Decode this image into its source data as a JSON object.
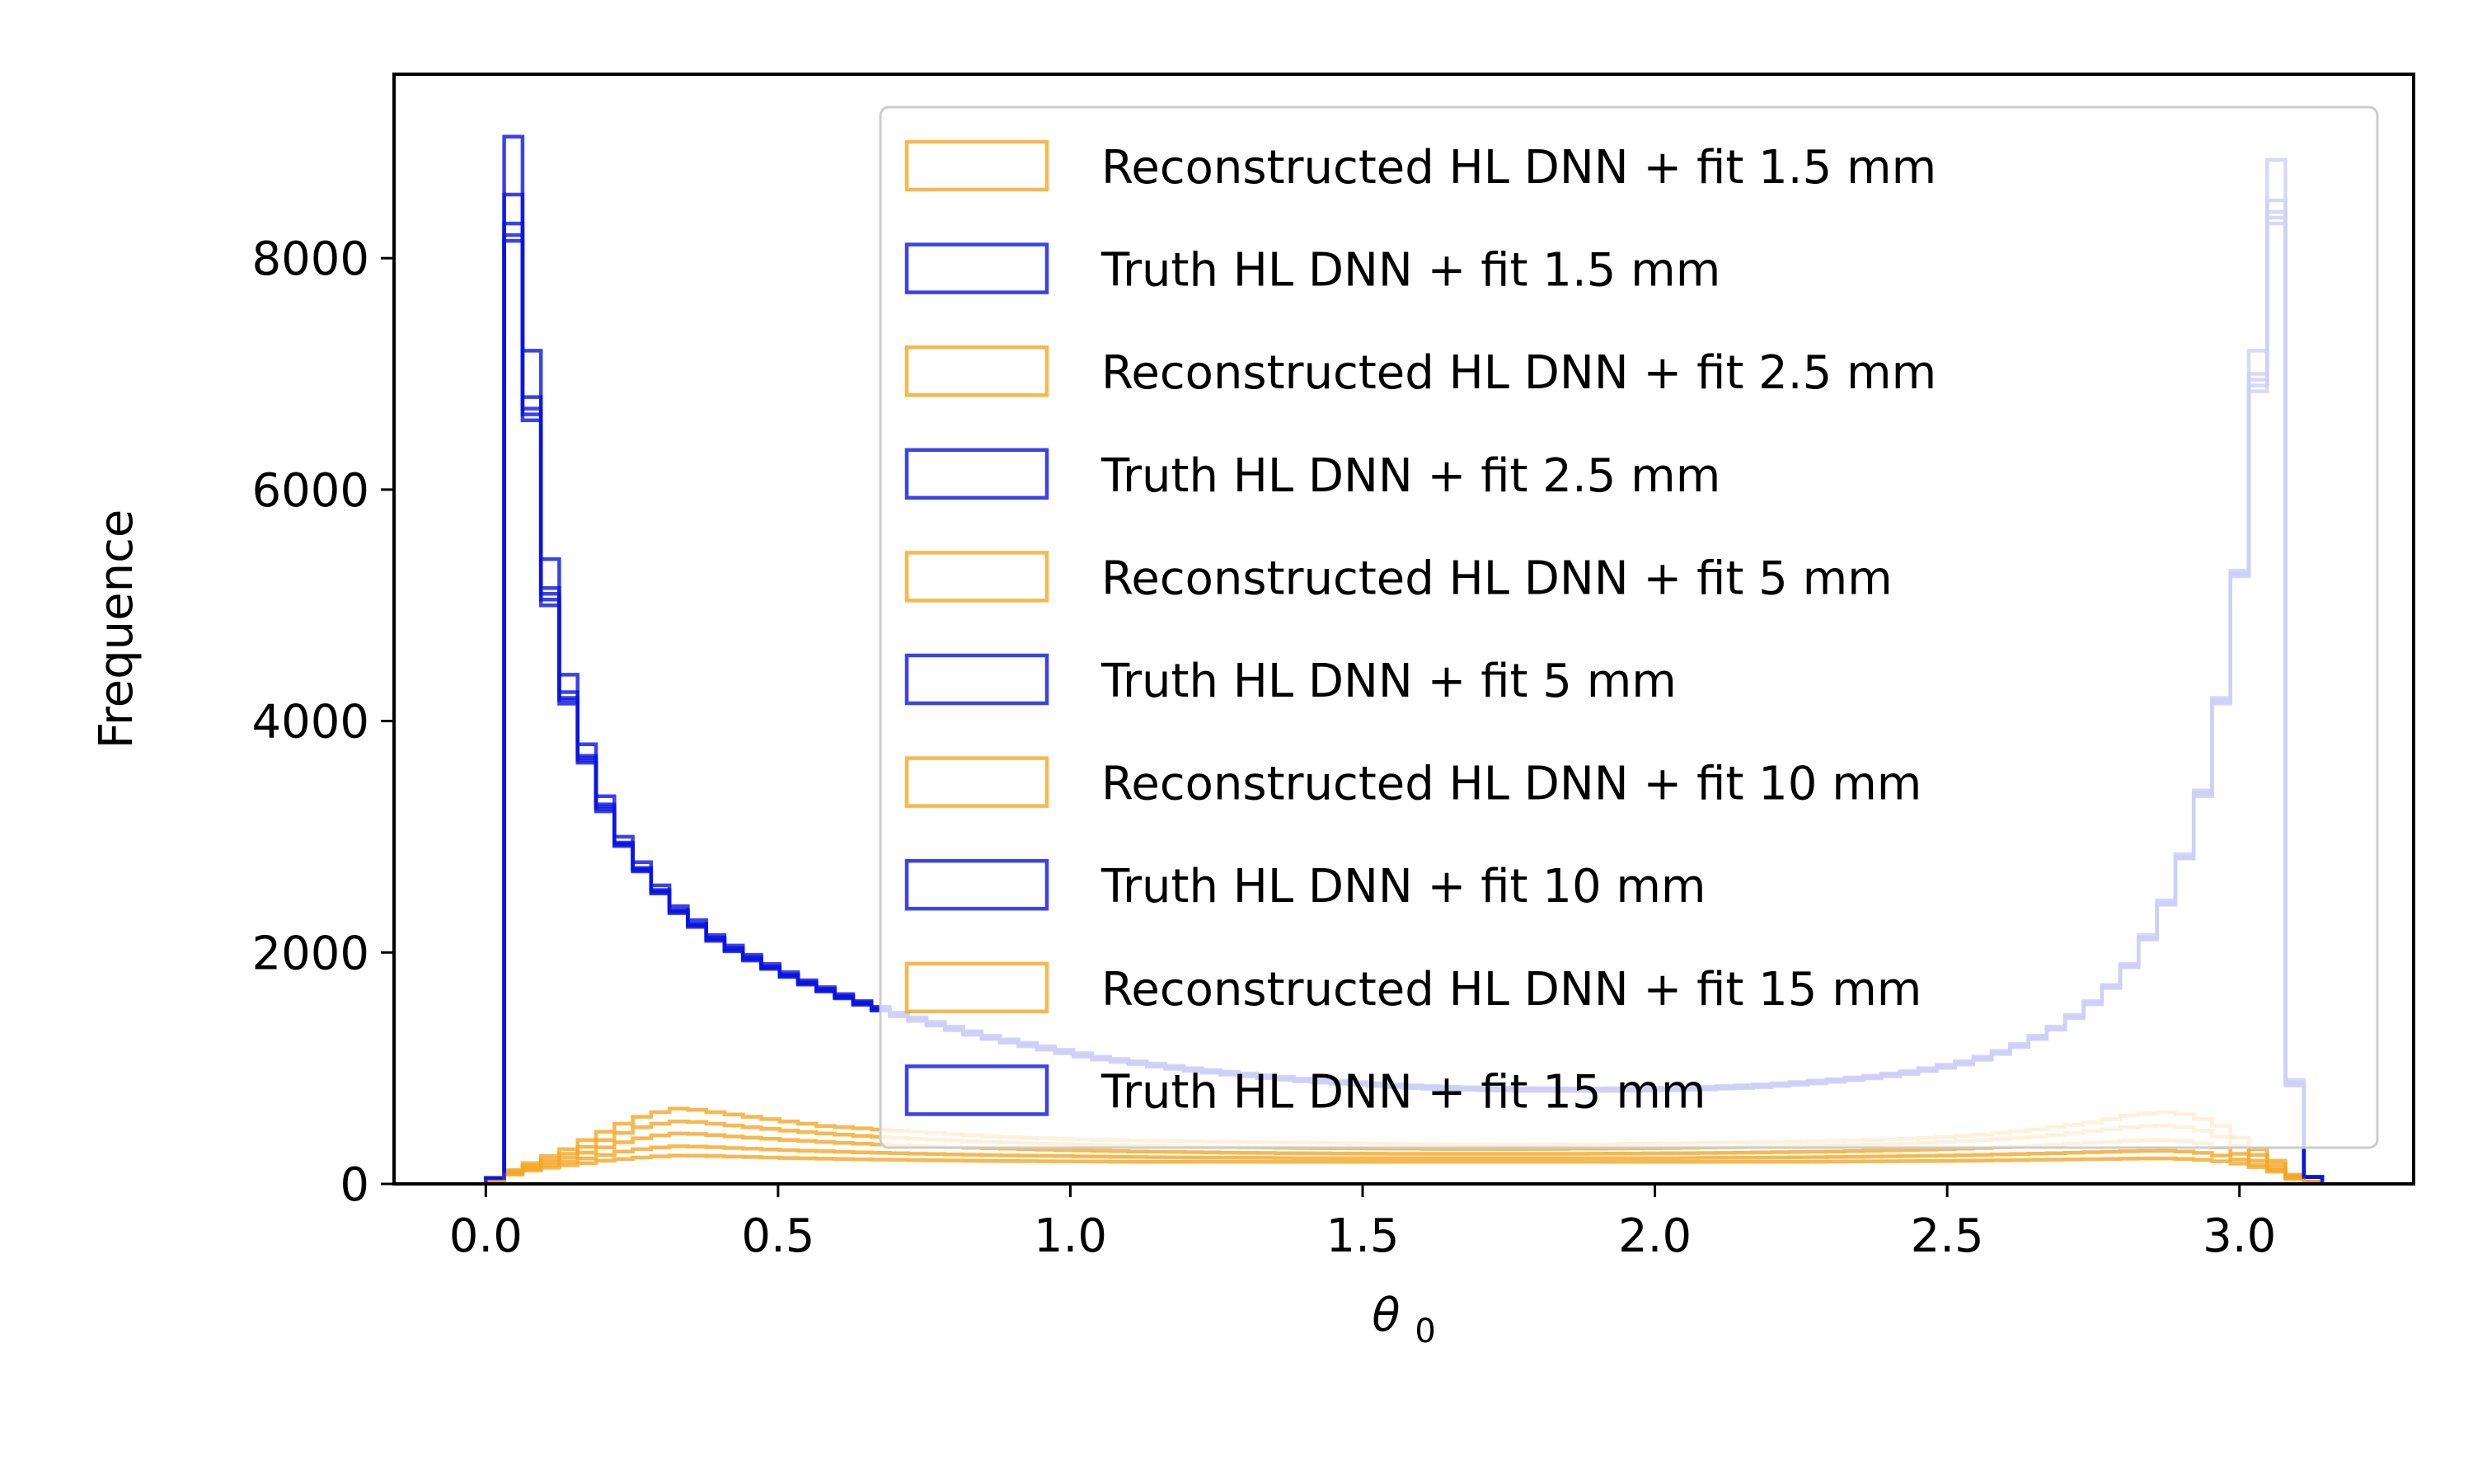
{
  "chart_data": {
    "type": "histogram-step",
    "xlabel": "θ",
    "xlabel_sub": "0",
    "ylabel": "Frequence",
    "xlim": [
      -0.157,
      3.298
    ],
    "ylim": [
      0,
      9590
    ],
    "xticks": [
      0.0,
      0.5,
      1.0,
      1.5,
      2.0,
      2.5,
      3.0
    ],
    "xtick_labels": [
      "0.0",
      "0.5",
      "1.0",
      "1.5",
      "2.0",
      "2.5",
      "3.0"
    ],
    "yticks": [
      0,
      2000,
      4000,
      6000,
      8000
    ],
    "ytick_labels": [
      "0",
      "2000",
      "4000",
      "6000",
      "8000"
    ],
    "grid": false,
    "legend_position": "upper right",
    "bins": {
      "start": 0.0,
      "end": 3.1416,
      "count": 100
    },
    "colors": {
      "reconstructed": "#f5a623",
      "truth": "#0a14e0"
    },
    "series": [
      {
        "name": "Reconstructed HL DNN + fit 1.5 mm",
        "kind": "reconstructed",
        "values": [
          30,
          120,
          180,
          240,
          300,
          380,
          450,
          520,
          580,
          620,
          650,
          640,
          620,
          600,
          580,
          560,
          540,
          520,
          500,
          490,
          480,
          470,
          460,
          450,
          440,
          430,
          420,
          410,
          405,
          400,
          395,
          390,
          385,
          380,
          378,
          375,
          372,
          370,
          368,
          366,
          364,
          362,
          360,
          358,
          356,
          354,
          352,
          350,
          348,
          346,
          345,
          344,
          343,
          342,
          341,
          340,
          340,
          341,
          342,
          343,
          344,
          345,
          346,
          348,
          350,
          352,
          354,
          356,
          358,
          360,
          362,
          365,
          368,
          372,
          376,
          380,
          385,
          390,
          398,
          405,
          415,
          425,
          440,
          455,
          470,
          490,
          510,
          530,
          560,
          590,
          610,
          620,
          600,
          560,
          500,
          400,
          300,
          200,
          80,
          20
        ]
      },
      {
        "name": "Truth HL DNN + fit 1.5 mm",
        "kind": "truth",
        "values": [
          50,
          9050,
          7200,
          5400,
          4400,
          3800,
          3350,
          3000,
          2780,
          2580,
          2400,
          2280,
          2150,
          2060,
          1980,
          1900,
          1830,
          1760,
          1700,
          1640,
          1580,
          1530,
          1480,
          1440,
          1400,
          1360,
          1320,
          1280,
          1250,
          1220,
          1190,
          1160,
          1130,
          1100,
          1080,
          1060,
          1040,
          1020,
          1000,
          985,
          970,
          955,
          940,
          925,
          910,
          900,
          890,
          880,
          870,
          860,
          852,
          845,
          840,
          836,
          832,
          830,
          828,
          827,
          826,
          826,
          826,
          827,
          828,
          830,
          832,
          836,
          840,
          846,
          852,
          860,
          870,
          880,
          892,
          905,
          920,
          936,
          955,
          975,
          1000,
          1030,
          1060,
          1100,
          1150,
          1210,
          1280,
          1360,
          1460,
          1580,
          1720,
          1900,
          2150,
          2450,
          2850,
          3400,
          4200,
          5300,
          7200,
          8850,
          900,
          60
        ]
      },
      {
        "name": "Reconstructed HL DNN + fit 2.5 mm",
        "kind": "reconstructed",
        "values": [
          30,
          110,
          160,
          210,
          260,
          320,
          380,
          440,
          490,
          520,
          540,
          535,
          520,
          505,
          490,
          475,
          460,
          448,
          436,
          425,
          415,
          406,
          398,
          390,
          383,
          376,
          370,
          364,
          358,
          353,
          348,
          344,
          340,
          336,
          333,
          330,
          327,
          324,
          322,
          320,
          318,
          316,
          314,
          312,
          310,
          309,
          308,
          307,
          306,
          305,
          304,
          303,
          302,
          302,
          302,
          302,
          302,
          302,
          303,
          304,
          305,
          306,
          307,
          308,
          310,
          312,
          314,
          316,
          318,
          320,
          323,
          326,
          329,
          332,
          336,
          340,
          345,
          350,
          356,
          362,
          370,
          378,
          388,
          398,
          410,
          424,
          440,
          456,
          472,
          488,
          500,
          505,
          490,
          460,
          410,
          330,
          250,
          170,
          70,
          20
        ]
      },
      {
        "name": "Truth HL DNN + fit 2.5 mm",
        "kind": "truth",
        "values": [
          50,
          8550,
          6800,
          5150,
          4250,
          3700,
          3280,
          2950,
          2730,
          2540,
          2370,
          2250,
          2130,
          2040,
          1960,
          1880,
          1810,
          1745,
          1685,
          1625,
          1570,
          1520,
          1470,
          1430,
          1390,
          1350,
          1310,
          1272,
          1240,
          1210,
          1180,
          1150,
          1120,
          1092,
          1072,
          1052,
          1032,
          1012,
          994,
          978,
          962,
          947,
          932,
          918,
          904,
          893,
          883,
          873,
          863,
          854,
          846,
          839,
          834,
          830,
          826,
          824,
          822,
          821,
          820,
          820,
          820,
          821,
          822,
          824,
          826,
          830,
          834,
          840,
          846,
          854,
          864,
          874,
          886,
          899,
          914,
          930,
          948,
          968,
          992,
          1020,
          1050,
          1090,
          1140,
          1200,
          1270,
          1350,
          1450,
          1570,
          1710,
          1890,
          2130,
          2430,
          2830,
          3380,
          4180,
          5280,
          7000,
          8500,
          880,
          60
        ]
      },
      {
        "name": "Reconstructed HL DNN + fit 5 mm",
        "kind": "reconstructed",
        "values": [
          30,
          100,
          145,
          185,
          225,
          270,
          315,
          360,
          395,
          420,
          435,
          432,
          422,
          410,
          400,
          390,
          380,
          371,
          363,
          355,
          348,
          341,
          335,
          329,
          323,
          318,
          313,
          308,
          304,
          300,
          296,
          292,
          289,
          286,
          283,
          280,
          278,
          276,
          274,
          272,
          270,
          268,
          267,
          266,
          265,
          264,
          263,
          262,
          261,
          260,
          260,
          260,
          260,
          260,
          260,
          260,
          260,
          260,
          260,
          260,
          261,
          262,
          263,
          264,
          265,
          266,
          267,
          268,
          270,
          272,
          274,
          276,
          278,
          280,
          283,
          286,
          289,
          292,
          296,
          300,
          305,
          310,
          316,
          322,
          330,
          338,
          347,
          356,
          364,
          372,
          378,
          380,
          370,
          350,
          315,
          260,
          200,
          140,
          60,
          20
        ]
      },
      {
        "name": "Truth HL DNN + fit 5 mm",
        "kind": "truth",
        "values": [
          50,
          8300,
          6700,
          5100,
          4200,
          3680,
          3260,
          2940,
          2720,
          2530,
          2360,
          2240,
          2120,
          2030,
          1950,
          1872,
          1802,
          1737,
          1677,
          1617,
          1562,
          1512,
          1462,
          1422,
          1382,
          1342,
          1302,
          1265,
          1233,
          1203,
          1173,
          1143,
          1113,
          1086,
          1066,
          1046,
          1026,
          1006,
          988,
          972,
          956,
          941,
          926,
          912,
          898,
          887,
          877,
          867,
          857,
          848,
          840,
          833,
          828,
          824,
          820,
          818,
          816,
          815,
          814,
          814,
          814,
          815,
          816,
          818,
          820,
          824,
          828,
          834,
          840,
          848,
          858,
          868,
          880,
          893,
          908,
          924,
          942,
          962,
          986,
          1014,
          1044,
          1084,
          1134,
          1194,
          1264,
          1344,
          1444,
          1564,
          1704,
          1884,
          2124,
          2424,
          2824,
          3370,
          4170,
          5270,
          6950,
          8400,
          870,
          60
        ]
      },
      {
        "name": "Reconstructed HL DNN + fit 10 mm",
        "kind": "reconstructed",
        "values": [
          25,
          90,
          130,
          160,
          190,
          220,
          250,
          280,
          300,
          315,
          325,
          323,
          317,
          310,
          304,
          298,
          292,
          287,
          282,
          277,
          273,
          269,
          265,
          261,
          258,
          255,
          252,
          249,
          246,
          244,
          242,
          240,
          238,
          236,
          234,
          232,
          231,
          230,
          229,
          228,
          227,
          226,
          225,
          224,
          223,
          222,
          222,
          222,
          222,
          222,
          222,
          222,
          222,
          222,
          222,
          222,
          222,
          222,
          222,
          222,
          222,
          222,
          222,
          222,
          223,
          224,
          225,
          226,
          227,
          228,
          229,
          230,
          231,
          232,
          234,
          236,
          238,
          240,
          242,
          245,
          248,
          251,
          254,
          258,
          262,
          266,
          270,
          274,
          278,
          282,
          285,
          286,
          280,
          268,
          245,
          210,
          165,
          120,
          50,
          15
        ]
      },
      {
        "name": "Truth HL DNN + fit 10 mm",
        "kind": "truth",
        "values": [
          50,
          8200,
          6650,
          5050,
          4180,
          3660,
          3240,
          2930,
          2710,
          2520,
          2350,
          2230,
          2110,
          2020,
          1940,
          1865,
          1795,
          1730,
          1670,
          1610,
          1555,
          1505,
          1455,
          1415,
          1375,
          1335,
          1295,
          1258,
          1226,
          1196,
          1166,
          1136,
          1106,
          1080,
          1060,
          1040,
          1020,
          1000,
          982,
          966,
          950,
          935,
          920,
          906,
          892,
          881,
          871,
          861,
          851,
          842,
          834,
          827,
          822,
          818,
          814,
          812,
          810,
          809,
          808,
          808,
          808,
          809,
          810,
          812,
          814,
          818,
          822,
          828,
          834,
          842,
          852,
          862,
          874,
          887,
          902,
          918,
          936,
          956,
          980,
          1008,
          1038,
          1078,
          1128,
          1188,
          1258,
          1338,
          1438,
          1558,
          1698,
          1878,
          2118,
          2418,
          2818,
          3360,
          4160,
          5260,
          6900,
          8350,
          860,
          60
        ]
      },
      {
        "name": "Reconstructed HL DNN + fit 15 mm",
        "kind": "reconstructed",
        "values": [
          20,
          80,
          115,
          140,
          160,
          180,
          200,
          215,
          228,
          238,
          245,
          244,
          240,
          236,
          232,
          228,
          224,
          221,
          218,
          215,
          212,
          210,
          208,
          206,
          204,
          202,
          200,
          199,
          198,
          197,
          196,
          195,
          194,
          193,
          192,
          191,
          190,
          190,
          190,
          190,
          190,
          190,
          190,
          190,
          190,
          190,
          190,
          190,
          190,
          190,
          190,
          190,
          190,
          190,
          190,
          190,
          190,
          190,
          190,
          190,
          190,
          190,
          190,
          190,
          190,
          190,
          190,
          190,
          190,
          190,
          190,
          191,
          192,
          193,
          194,
          195,
          196,
          197,
          198,
          199,
          200,
          202,
          204,
          206,
          208,
          210,
          212,
          214,
          216,
          218,
          220,
          220,
          216,
          208,
          195,
          175,
          145,
          105,
          45,
          12
        ]
      },
      {
        "name": "Truth HL DNN + fit 15 mm",
        "kind": "truth",
        "values": [
          50,
          8150,
          6600,
          5000,
          4150,
          3640,
          3220,
          2920,
          2700,
          2510,
          2340,
          2220,
          2100,
          2010,
          1930,
          1858,
          1788,
          1723,
          1663,
          1603,
          1548,
          1498,
          1448,
          1408,
          1368,
          1328,
          1288,
          1251,
          1219,
          1189,
          1159,
          1129,
          1099,
          1074,
          1054,
          1034,
          1014,
          994,
          976,
          960,
          944,
          929,
          914,
          900,
          886,
          875,
          865,
          855,
          845,
          836,
          828,
          821,
          816,
          812,
          808,
          806,
          804,
          803,
          802,
          802,
          802,
          803,
          804,
          806,
          808,
          812,
          816,
          822,
          828,
          836,
          846,
          856,
          868,
          881,
          896,
          912,
          930,
          950,
          974,
          1002,
          1032,
          1072,
          1122,
          1182,
          1252,
          1332,
          1432,
          1552,
          1692,
          1872,
          2112,
          2412,
          2812,
          3350,
          4150,
          5250,
          6850,
          8300,
          850,
          60
        ]
      }
    ]
  }
}
